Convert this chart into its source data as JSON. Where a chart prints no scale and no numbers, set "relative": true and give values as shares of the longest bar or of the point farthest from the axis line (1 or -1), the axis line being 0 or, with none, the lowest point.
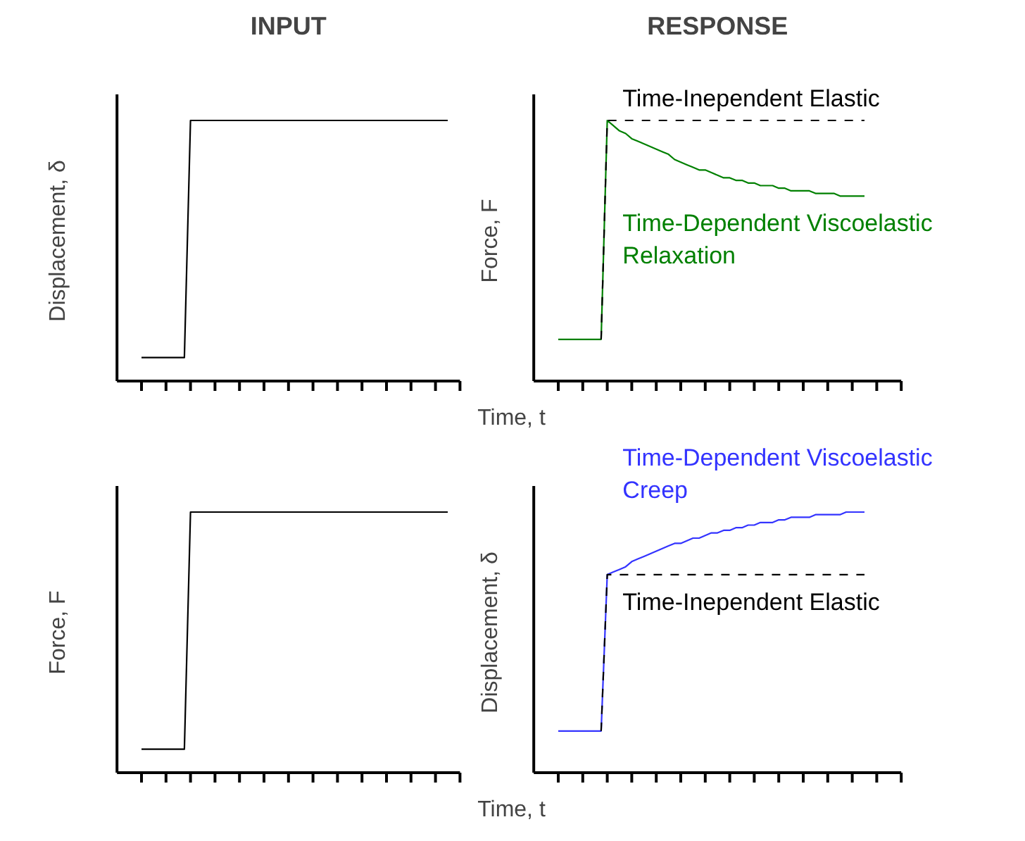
{
  "chart_data": [
    {
      "type": "line",
      "title": "INPUT",
      "ylabel": "Displacement,  δ",
      "relative": true,
      "categories": [
        null,
        null,
        null,
        null,
        null,
        null,
        null,
        null,
        null,
        null,
        null,
        null,
        null,
        null,
        null,
        null,
        null,
        null,
        null,
        null,
        null,
        null,
        null,
        null,
        null,
        null,
        null,
        null,
        null,
        null,
        null,
        null,
        null,
        null,
        null,
        null,
        null,
        null,
        null,
        null,
        null,
        null,
        null,
        null,
        null,
        null,
        null,
        null,
        null,
        null,
        null
      ],
      "series": [
        {
          "color": "#000000",
          "values": [
            0.09,
            0.09,
            0.09,
            0.09,
            0.09,
            0.09,
            0.09,
            0.09,
            1,
            1,
            1,
            1,
            1,
            1,
            1,
            1,
            1,
            1,
            1,
            1,
            1,
            1,
            1,
            1,
            1,
            1,
            1,
            1,
            1,
            1,
            1,
            1,
            1,
            1,
            1,
            1,
            1,
            1,
            1,
            1,
            1,
            1,
            1,
            1,
            1,
            1,
            1,
            1,
            1,
            1,
            1
          ]
        }
      ]
    },
    {
      "type": "line",
      "title": "RESPONSE",
      "ylabel": "Force,  F",
      "xlabel": "Time, t",
      "relative": true,
      "categories": [
        null,
        null,
        null,
        null,
        null,
        null,
        null,
        null,
        null,
        null,
        null,
        null,
        null,
        null,
        null,
        null,
        null,
        null,
        null,
        null,
        null,
        null,
        null,
        null,
        null,
        null,
        null,
        null,
        null,
        null,
        null,
        null,
        null,
        null,
        null,
        null,
        null,
        null,
        null,
        null,
        null,
        null,
        null,
        null,
        null,
        null,
        null,
        null,
        null,
        null,
        null
      ],
      "series": [
        {
          "name": "Time-Dependent Viscoelastic\nRelaxation",
          "color": "#008000",
          "values": [
            0.16,
            0.16,
            0.16,
            0.16,
            0.16,
            0.16,
            0.16,
            0.16,
            1,
            0.98,
            0.96,
            0.95,
            0.93,
            0.92,
            0.91,
            0.9,
            0.89,
            0.88,
            0.87,
            0.85,
            0.84,
            0.83,
            0.82,
            0.81,
            0.81,
            0.8,
            0.79,
            0.78,
            0.78,
            0.77,
            0.77,
            0.76,
            0.76,
            0.75,
            0.75,
            0.75,
            0.74,
            0.74,
            0.73,
            0.73,
            0.73,
            0.73,
            0.72,
            0.72,
            0.72,
            0.72,
            0.71,
            0.71,
            0.71,
            0.71,
            0.71
          ]
        },
        {
          "name": "Time-Inependent Elastic",
          "color": "#000000",
          "line_style": "dashed",
          "values": [
            null,
            null,
            null,
            null,
            null,
            null,
            null,
            0.16,
            1,
            1,
            1,
            1,
            1,
            1,
            1,
            1,
            1,
            1,
            1,
            1,
            1,
            1,
            1,
            1,
            1,
            1,
            1,
            1,
            1,
            1,
            1,
            1,
            1,
            1,
            1,
            1,
            1,
            1,
            1,
            1,
            1,
            1,
            1,
            1,
            1,
            1,
            1,
            1,
            1,
            1,
            1
          ]
        }
      ]
    },
    {
      "type": "line",
      "ylabel": "Force,  F",
      "relative": true,
      "categories": [
        null,
        null,
        null,
        null,
        null,
        null,
        null,
        null,
        null,
        null,
        null,
        null,
        null,
        null,
        null,
        null,
        null,
        null,
        null,
        null,
        null,
        null,
        null,
        null,
        null,
        null,
        null,
        null,
        null,
        null,
        null,
        null,
        null,
        null,
        null,
        null,
        null,
        null,
        null,
        null,
        null,
        null,
        null,
        null,
        null,
        null,
        null,
        null,
        null,
        null,
        null
      ],
      "series": [
        {
          "color": "#000000",
          "values": [
            0.09,
            0.09,
            0.09,
            0.09,
            0.09,
            0.09,
            0.09,
            0.09,
            1,
            1,
            1,
            1,
            1,
            1,
            1,
            1,
            1,
            1,
            1,
            1,
            1,
            1,
            1,
            1,
            1,
            1,
            1,
            1,
            1,
            1,
            1,
            1,
            1,
            1,
            1,
            1,
            1,
            1,
            1,
            1,
            1,
            1,
            1,
            1,
            1,
            1,
            1,
            1,
            1,
            1,
            1
          ]
        }
      ]
    },
    {
      "type": "line",
      "ylabel": "Displacement,  δ",
      "xlabel": "Time, t",
      "relative": true,
      "categories": [
        null,
        null,
        null,
        null,
        null,
        null,
        null,
        null,
        null,
        null,
        null,
        null,
        null,
        null,
        null,
        null,
        null,
        null,
        null,
        null,
        null,
        null,
        null,
        null,
        null,
        null,
        null,
        null,
        null,
        null,
        null,
        null,
        null,
        null,
        null,
        null,
        null,
        null,
        null,
        null,
        null,
        null,
        null,
        null,
        null,
        null,
        null,
        null,
        null,
        null,
        null
      ],
      "series": [
        {
          "name": "Time-Dependent Viscoelastic\nCreep",
          "color": "#3333ff",
          "values": [
            0.16,
            0.16,
            0.16,
            0.16,
            0.16,
            0.16,
            0.16,
            0.16,
            0.76,
            0.77,
            0.78,
            0.79,
            0.81,
            0.82,
            0.83,
            0.84,
            0.85,
            0.86,
            0.87,
            0.88,
            0.88,
            0.89,
            0.9,
            0.9,
            0.91,
            0.92,
            0.92,
            0.93,
            0.93,
            0.94,
            0.94,
            0.95,
            0.95,
            0.96,
            0.96,
            0.96,
            0.97,
            0.97,
            0.98,
            0.98,
            0.98,
            0.98,
            0.99,
            0.99,
            0.99,
            0.99,
            0.99,
            1,
            1,
            1,
            1
          ]
        },
        {
          "name": "Time-Inependent Elastic",
          "color": "#000000",
          "line_style": "dashed",
          "values": [
            null,
            null,
            null,
            null,
            null,
            null,
            null,
            0.16,
            0.76,
            0.76,
            0.76,
            0.76,
            0.76,
            0.76,
            0.76,
            0.76,
            0.76,
            0.76,
            0.76,
            0.76,
            0.76,
            0.76,
            0.76,
            0.76,
            0.76,
            0.76,
            0.76,
            0.76,
            0.76,
            0.76,
            0.76,
            0.76,
            0.76,
            0.76,
            0.76,
            0.76,
            0.76,
            0.76,
            0.76,
            0.76,
            0.76,
            0.76,
            0.76,
            0.76,
            0.76,
            0.76,
            0.76,
            0.76,
            0.76,
            0.76,
            0.76
          ]
        }
      ]
    }
  ]
}
